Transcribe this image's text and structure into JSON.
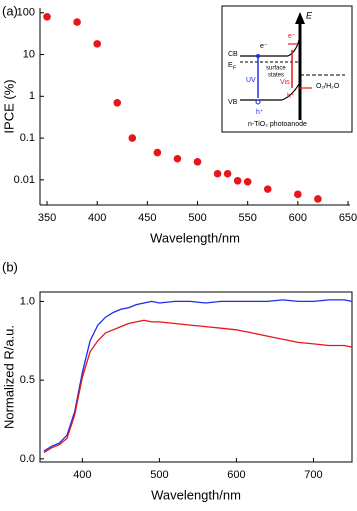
{
  "chart_data": [
    {
      "type": "scatter",
      "panel": "(a)",
      "x_label": "Wavelength/nm",
      "y_label": "IPCE (%)",
      "log_y": true,
      "color": "#e8161b",
      "x": [
        350,
        380,
        400,
        420,
        435,
        460,
        480,
        500,
        520,
        530,
        540,
        550,
        570,
        600,
        620
      ],
      "values": [
        80,
        60,
        18,
        0.7,
        0.1,
        0.045,
        0.032,
        0.027,
        0.014,
        0.014,
        0.0095,
        0.009,
        0.006,
        0.0045,
        0.0035
      ],
      "xlim": [
        343,
        652
      ],
      "xticks": [
        350,
        400,
        450,
        500,
        550,
        600,
        650
      ],
      "ylim": [
        0.0025,
        130
      ],
      "yticks": [
        0.01,
        0.1,
        1,
        10,
        100
      ],
      "inset_labels": {
        "energy": "E",
        "cb": "CB",
        "ef": "E",
        "ef_sub": "F",
        "e1": "e⁻",
        "e2": "e⁻",
        "uv": "UV",
        "vis": "Vis",
        "h1": "h⁺",
        "h2": "h⁺",
        "ss1": "surface",
        "ss2": "states",
        "redox": "O₂/H₂O",
        "vb": "VB",
        "electrode": "n-TiO₂ photoanode"
      }
    },
    {
      "type": "line",
      "panel": "(b)",
      "x_label": "Wavelength/nm",
      "y_label": "Normalized R/a.u.",
      "x": [
        350,
        360,
        370,
        380,
        390,
        400,
        410,
        420,
        430,
        440,
        450,
        460,
        470,
        480,
        490,
        500,
        520,
        540,
        560,
        580,
        600,
        620,
        640,
        660,
        680,
        700,
        720,
        740,
        750
      ],
      "series": [
        {
          "color": "#1a2ee8",
          "values": [
            0.05,
            0.08,
            0.1,
            0.15,
            0.3,
            0.55,
            0.75,
            0.85,
            0.9,
            0.93,
            0.95,
            0.96,
            0.98,
            0.99,
            1.0,
            0.99,
            1.0,
            1.0,
            0.99,
            1.0,
            1.0,
            1.0,
            1.0,
            1.01,
            1.0,
            1.0,
            1.01,
            1.01,
            1.0
          ]
        },
        {
          "color": "#e8161b",
          "values": [
            0.04,
            0.07,
            0.09,
            0.13,
            0.28,
            0.52,
            0.68,
            0.75,
            0.8,
            0.82,
            0.84,
            0.86,
            0.87,
            0.88,
            0.87,
            0.87,
            0.86,
            0.85,
            0.84,
            0.83,
            0.82,
            0.8,
            0.78,
            0.76,
            0.74,
            0.73,
            0.72,
            0.72,
            0.71
          ]
        }
      ],
      "xlim": [
        345,
        750
      ],
      "xticks": [
        400,
        500,
        600,
        700
      ],
      "ylim": [
        -0.02,
        1.06
      ],
      "yticks": [
        {
          "value": 0,
          "label": "0.0"
        },
        {
          "value": 0.5,
          "label": "0.5"
        },
        {
          "value": 1,
          "label": "1.0"
        }
      ]
    }
  ]
}
